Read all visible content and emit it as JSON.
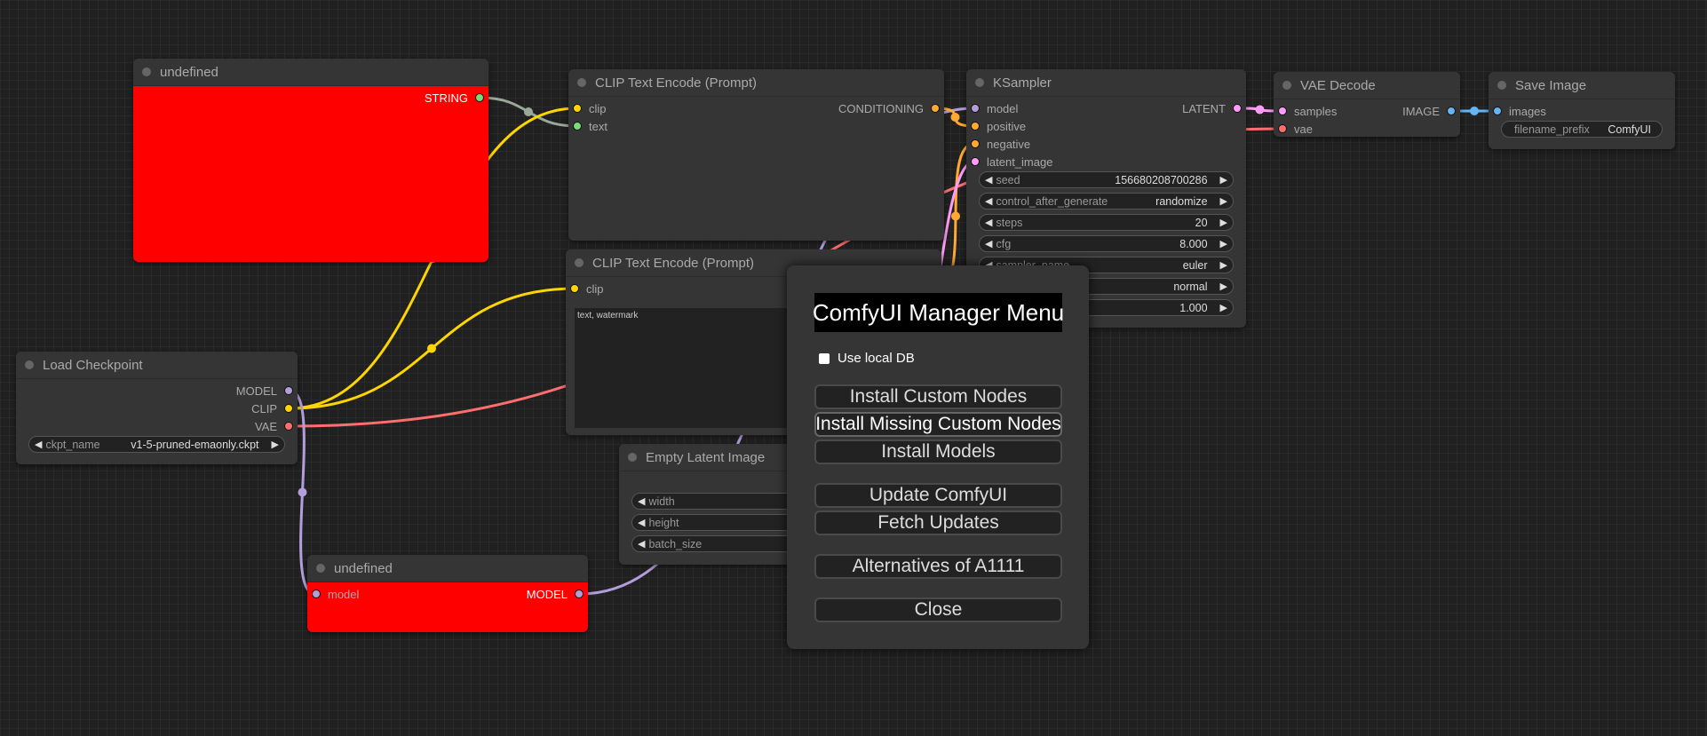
{
  "colors": {
    "MODEL": "#b39ddb",
    "CLIP": "#ffd500",
    "VAE": "#ff6e6e",
    "STRING": "#77dd77",
    "CONDITIONING": "#ffa931",
    "LATENT": "#ff9cf9",
    "IMAGE": "#64b5f6",
    "text": "#77dd77",
    "node_red": "#ff0000"
  },
  "nodes": [
    {
      "id": "primitive_string",
      "title": "undefined",
      "inputs": [],
      "outputs": [
        {
          "label": "STRING",
          "type": "STRING"
        }
      ],
      "widgets": []
    },
    {
      "id": "clip_text_encode_1",
      "title": "CLIP Text Encode (Prompt)",
      "inputs": [
        {
          "label": "clip",
          "type": "CLIP"
        },
        {
          "label": "text",
          "type": "text"
        }
      ],
      "outputs": [
        {
          "label": "CONDITIONING",
          "type": "CONDITIONING"
        }
      ],
      "widgets": []
    },
    {
      "id": "ksampler",
      "title": "KSampler",
      "inputs": [
        {
          "label": "model",
          "type": "MODEL"
        },
        {
          "label": "positive",
          "type": "CONDITIONING"
        },
        {
          "label": "negative",
          "type": "CONDITIONING"
        },
        {
          "label": "latent_image",
          "type": "LATENT"
        }
      ],
      "outputs": [
        {
          "label": "LATENT",
          "type": "LATENT"
        }
      ],
      "widgets": [
        {
          "label": "seed",
          "value": "156680208700286"
        },
        {
          "label": "control_after_generate",
          "value": "randomize"
        },
        {
          "label": "steps",
          "value": "20"
        },
        {
          "label": "cfg",
          "value": "8.000"
        },
        {
          "label": "sampler_name",
          "value": "euler"
        },
        {
          "label": "",
          "value": "normal"
        },
        {
          "label": "",
          "value": "1.000"
        }
      ]
    },
    {
      "id": "vae_decode",
      "title": "VAE Decode",
      "inputs": [
        {
          "label": "samples",
          "type": "LATENT"
        },
        {
          "label": "vae",
          "type": "VAE"
        }
      ],
      "outputs": [
        {
          "label": "IMAGE",
          "type": "IMAGE"
        }
      ],
      "widgets": []
    },
    {
      "id": "save_image",
      "title": "Save Image",
      "inputs": [
        {
          "label": "images",
          "type": "IMAGE"
        }
      ],
      "outputs": [],
      "widgets": [
        {
          "label": "filename_prefix",
          "value": "ComfyUI",
          "kind": "text"
        }
      ]
    },
    {
      "id": "clip_text_encode_2",
      "title": "CLIP Text Encode (Prompt)",
      "inputs": [
        {
          "label": "clip",
          "type": "CLIP"
        }
      ],
      "outputs": [],
      "widgets": [],
      "text_value": "text, watermark"
    },
    {
      "id": "load_checkpoint",
      "title": "Load Checkpoint",
      "inputs": [],
      "outputs": [
        {
          "label": "MODEL",
          "type": "MODEL"
        },
        {
          "label": "CLIP",
          "type": "CLIP"
        },
        {
          "label": "VAE",
          "type": "VAE"
        }
      ],
      "widgets": [
        {
          "label": "ckpt_name",
          "value": "v1-5-pruned-emaonly.ckpt"
        }
      ]
    },
    {
      "id": "empty_latent",
      "title": "Empty Latent Image",
      "inputs": [],
      "outputs": [],
      "widgets": [
        {
          "label": "width",
          "value": ""
        },
        {
          "label": "height",
          "value": ""
        },
        {
          "label": "batch_size",
          "value": ""
        }
      ]
    },
    {
      "id": "primitive_model",
      "title": "undefined",
      "inputs": [
        {
          "label": "model",
          "type": "MODEL"
        }
      ],
      "outputs": [
        {
          "label": "MODEL",
          "type": "MODEL"
        }
      ],
      "widgets": []
    }
  ],
  "manager_menu": {
    "title": "ComfyUI Manager Menu",
    "use_local_db_label": "Use local DB",
    "use_local_db_checked": false,
    "buttons": [
      "Install Custom Nodes",
      "Install Missing Custom Nodes",
      "Install Models",
      "Update ComfyUI",
      "Fetch Updates",
      "Alternatives of A1111",
      "Close"
    ]
  }
}
